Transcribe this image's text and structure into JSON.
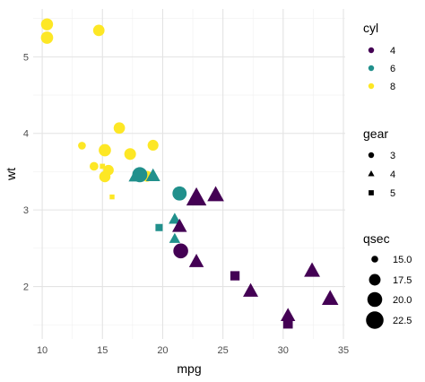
{
  "chart_data": {
    "type": "scatter",
    "title": "",
    "xlabel": "mpg",
    "ylabel": "wt",
    "xlim": [
      9.25,
      35.15
    ],
    "ylim": [
      1.315,
      5.625
    ],
    "x_ticks": [
      10,
      15,
      20,
      25,
      30,
      35
    ],
    "y_ticks": [
      2,
      3,
      4,
      5
    ],
    "grid": true,
    "legend_placement": "right",
    "colors": {
      "4": "#440154",
      "6": "#21908C",
      "8": "#FDE725"
    },
    "legends": {
      "cyl": {
        "title": "cyl",
        "items": [
          "4",
          "6",
          "8"
        ]
      },
      "gear": {
        "title": "gear",
        "items": [
          "3",
          "4",
          "5"
        ],
        "shapes": {
          "3": "circle",
          "4": "triangle",
          "5": "square"
        }
      },
      "qsec": {
        "title": "qsec",
        "items": [
          "15.0",
          "17.5",
          "20.0",
          "22.5"
        ],
        "values": [
          15.0,
          17.5,
          20.0,
          22.5
        ]
      }
    },
    "size_range": {
      "qsec": [
        14.5,
        22.9
      ]
    },
    "points": [
      {
        "x": 21.0,
        "y": 2.62,
        "cyl": "6",
        "gear": "4",
        "qsec": 16.46
      },
      {
        "x": 21.0,
        "y": 2.875,
        "cyl": "6",
        "gear": "4",
        "qsec": 17.02
      },
      {
        "x": 22.8,
        "y": 2.32,
        "cyl": "4",
        "gear": "4",
        "qsec": 18.61
      },
      {
        "x": 21.4,
        "y": 3.215,
        "cyl": "6",
        "gear": "3",
        "qsec": 19.44
      },
      {
        "x": 18.7,
        "y": 3.44,
        "cyl": "8",
        "gear": "3",
        "qsec": 17.02
      },
      {
        "x": 18.1,
        "y": 3.46,
        "cyl": "6",
        "gear": "3",
        "qsec": 20.22
      },
      {
        "x": 14.3,
        "y": 3.57,
        "cyl": "8",
        "gear": "3",
        "qsec": 15.84
      },
      {
        "x": 24.4,
        "y": 3.19,
        "cyl": "4",
        "gear": "4",
        "qsec": 20.0
      },
      {
        "x": 22.8,
        "y": 3.15,
        "cyl": "4",
        "gear": "4",
        "qsec": 22.9
      },
      {
        "x": 19.2,
        "y": 3.44,
        "cyl": "6",
        "gear": "4",
        "qsec": 18.3
      },
      {
        "x": 17.8,
        "y": 3.44,
        "cyl": "6",
        "gear": "4",
        "qsec": 18.9
      },
      {
        "x": 16.4,
        "y": 4.07,
        "cyl": "8",
        "gear": "3",
        "qsec": 17.4
      },
      {
        "x": 17.3,
        "y": 3.73,
        "cyl": "8",
        "gear": "3",
        "qsec": 17.6
      },
      {
        "x": 15.2,
        "y": 3.78,
        "cyl": "8",
        "gear": "3",
        "qsec": 18.0
      },
      {
        "x": 10.4,
        "y": 5.25,
        "cyl": "8",
        "gear": "3",
        "qsec": 17.98
      },
      {
        "x": 10.4,
        "y": 5.424,
        "cyl": "8",
        "gear": "3",
        "qsec": 17.82
      },
      {
        "x": 14.7,
        "y": 5.345,
        "cyl": "8",
        "gear": "3",
        "qsec": 17.42
      },
      {
        "x": 32.4,
        "y": 2.2,
        "cyl": "4",
        "gear": "4",
        "qsec": 19.47
      },
      {
        "x": 30.4,
        "y": 1.615,
        "cyl": "4",
        "gear": "4",
        "qsec": 18.52
      },
      {
        "x": 33.9,
        "y": 1.835,
        "cyl": "4",
        "gear": "4",
        "qsec": 19.9
      },
      {
        "x": 21.5,
        "y": 2.465,
        "cyl": "4",
        "gear": "3",
        "qsec": 20.01
      },
      {
        "x": 15.5,
        "y": 3.52,
        "cyl": "8",
        "gear": "3",
        "qsec": 16.87
      },
      {
        "x": 15.2,
        "y": 3.435,
        "cyl": "8",
        "gear": "3",
        "qsec": 17.3
      },
      {
        "x": 13.3,
        "y": 3.84,
        "cyl": "8",
        "gear": "3",
        "qsec": 15.41
      },
      {
        "x": 19.2,
        "y": 3.845,
        "cyl": "8",
        "gear": "3",
        "qsec": 17.05
      },
      {
        "x": 27.3,
        "y": 1.935,
        "cyl": "4",
        "gear": "4",
        "qsec": 18.9
      },
      {
        "x": 26.0,
        "y": 2.14,
        "cyl": "4",
        "gear": "5",
        "qsec": 16.7
      },
      {
        "x": 30.4,
        "y": 1.513,
        "cyl": "4",
        "gear": "5",
        "qsec": 16.9
      },
      {
        "x": 15.8,
        "y": 3.17,
        "cyl": "8",
        "gear": "5",
        "qsec": 14.5
      },
      {
        "x": 19.7,
        "y": 2.77,
        "cyl": "6",
        "gear": "5",
        "qsec": 15.5
      },
      {
        "x": 15.0,
        "y": 3.57,
        "cyl": "8",
        "gear": "5",
        "qsec": 14.6
      },
      {
        "x": 21.4,
        "y": 2.78,
        "cyl": "4",
        "gear": "4",
        "qsec": 18.6
      }
    ]
  }
}
